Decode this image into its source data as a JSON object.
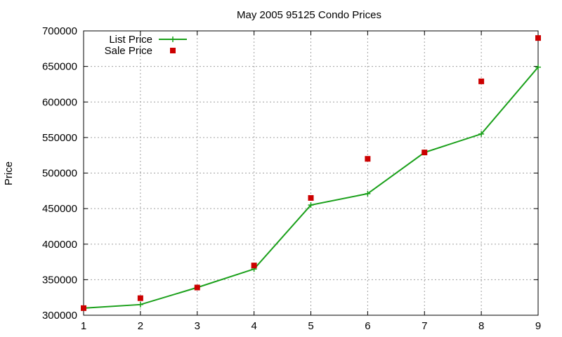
{
  "chart_data": {
    "type": "line",
    "title": "May 2005 95125 Condo Prices",
    "xlabel": "",
    "ylabel": "Price",
    "xlim": [
      1,
      9
    ],
    "ylim": [
      300000,
      700000
    ],
    "x_ticks": [
      1,
      2,
      3,
      4,
      5,
      6,
      7,
      8,
      9
    ],
    "y_ticks": [
      300000,
      350000,
      400000,
      450000,
      500000,
      550000,
      600000,
      650000,
      700000
    ],
    "grid": true,
    "legend_position": "top-left",
    "series": [
      {
        "name": "List Price",
        "style": "line-with-plus-markers",
        "color": "#1aa01a",
        "x": [
          1,
          2,
          3,
          4,
          5,
          6,
          7,
          8,
          9
        ],
        "y": [
          310000,
          315000,
          339000,
          365000,
          455000,
          471000,
          529000,
          555000,
          649000
        ]
      },
      {
        "name": "Sale Price",
        "style": "square-markers",
        "color": "#cc0000",
        "x": [
          1,
          2,
          3,
          4,
          5,
          6,
          7,
          8,
          9
        ],
        "y": [
          310000,
          324000,
          339000,
          370000,
          465000,
          520000,
          529000,
          629000,
          690000
        ]
      }
    ]
  }
}
